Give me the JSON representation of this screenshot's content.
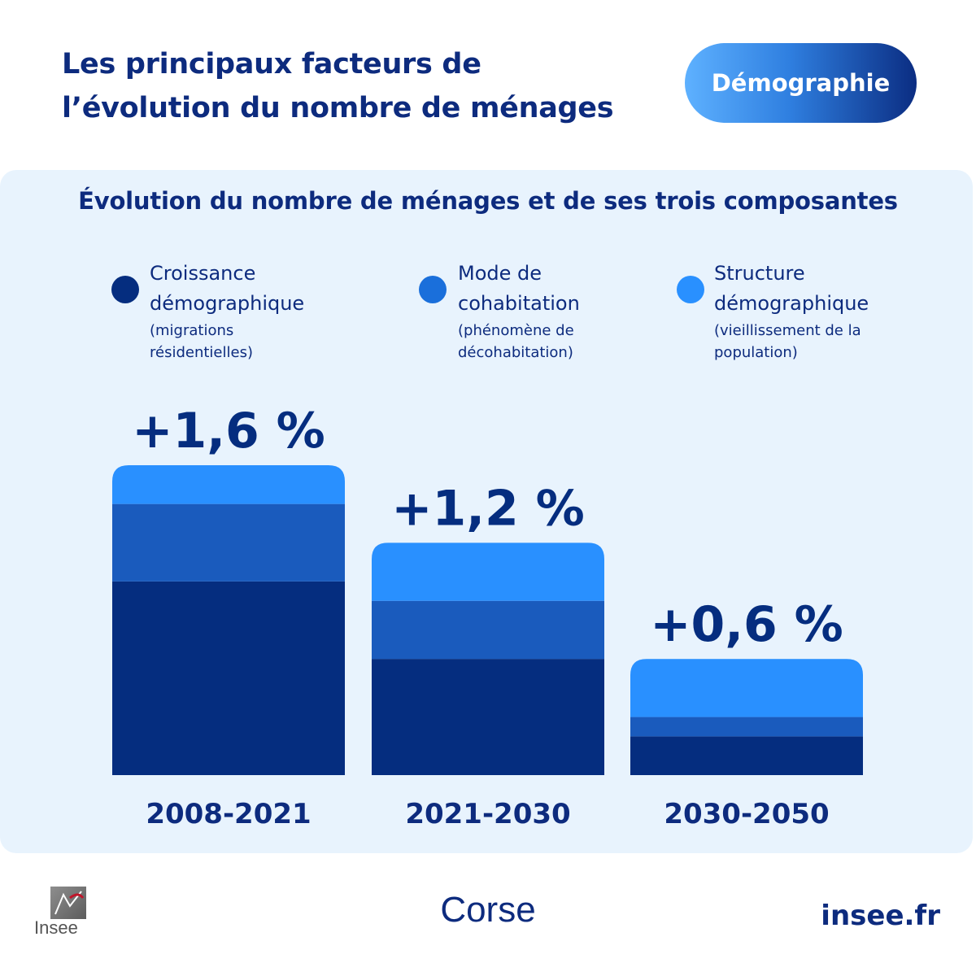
{
  "header": {
    "title_line1": "Les principaux facteurs de",
    "title_line2": "l’évolution du nombre de ménages",
    "badge": "Démographie"
  },
  "colors": {
    "panel_bg": "#e8f3fd",
    "croissance": "#052d7f",
    "mode": "#1a5bbd",
    "structure": "#2990ff",
    "text": "#0d2b7e"
  },
  "chart_data": {
    "type": "bar",
    "stacked": true,
    "title": "Évolution du nombre de ménages et de ses trois composantes",
    "categories": [
      "2008-2021",
      "2021-2030",
      "2030-2050"
    ],
    "totals": [
      1.6,
      1.2,
      0.6
    ],
    "total_labels": [
      "+1,6 %",
      "+1,2 %",
      "+0,6 %"
    ],
    "series": [
      {
        "name": "Croissance démographique",
        "note": "(migrations résidentielles)",
        "color": "#052d7f",
        "values": [
          1.0,
          0.6,
          0.2
        ]
      },
      {
        "name": "Mode de cohabitation",
        "note": "(phénomène de décohabitation)",
        "color": "#1a5bbd",
        "values": [
          0.4,
          0.3,
          0.1
        ]
      },
      {
        "name": "Structure démographique",
        "note": "(vieillissement de la population)",
        "color": "#2990ff",
        "values": [
          0.2,
          0.3,
          0.3
        ]
      }
    ],
    "ylim": [
      0,
      1.6
    ],
    "grid": false,
    "legend_position": "top"
  },
  "legend": [
    {
      "label_line1": "Croissance",
      "label_line2": "démographique",
      "note_line1": "(migrations",
      "note_line2": "résidentielles)"
    },
    {
      "label_line1": "Mode de",
      "label_line2": "cohabitation",
      "note_line1": "(phénomène de",
      "note_line2": "décohabitation)"
    },
    {
      "label_line1": "Structure",
      "label_line2": "démographique",
      "note_line1": "(vieillissement de la",
      "note_line2": "population)"
    }
  ],
  "footer": {
    "region": "Corse",
    "site": "insee.fr",
    "logo_text": "Insee"
  }
}
